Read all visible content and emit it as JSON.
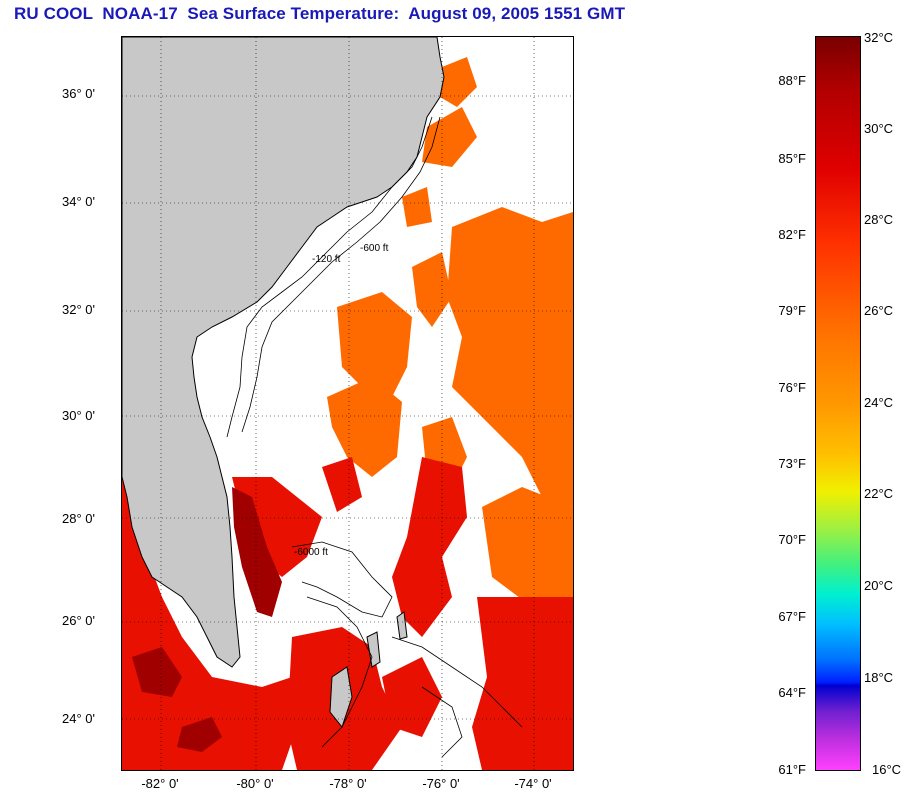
{
  "title": "RU COOL  NOAA-17  Sea Surface Temperature:  August 09, 2005 1551 GMT",
  "map": {
    "lat_labels": [
      "36° 0'",
      "34° 0'",
      "32° 0'",
      "30° 0'",
      "28° 0'",
      "26° 0'",
      "24° 0'"
    ],
    "lon_labels": [
      "-82° 0'",
      "-80° 0'",
      "-78° 0'",
      "-76° 0'",
      "-74° 0'"
    ],
    "contour_labels": [
      "-120 ft",
      "-600 ft",
      "-6000 ft"
    ],
    "colors": {
      "land": "#c8c8c8",
      "cloud": "#ffffff",
      "warm": "#ff6a00",
      "hot": "#e81000",
      "hottest": "#a00000"
    }
  },
  "colorbar": {
    "fahrenheit": [
      "88°F",
      "85°F",
      "82°F",
      "79°F",
      "76°F",
      "73°F",
      "70°F",
      "67°F",
      "64°F",
      "61°F"
    ],
    "celsius": [
      "32°C",
      "30°C",
      "28°C",
      "26°C",
      "24°C",
      "22°C",
      "20°C",
      "18°C",
      "16°C"
    ]
  }
}
